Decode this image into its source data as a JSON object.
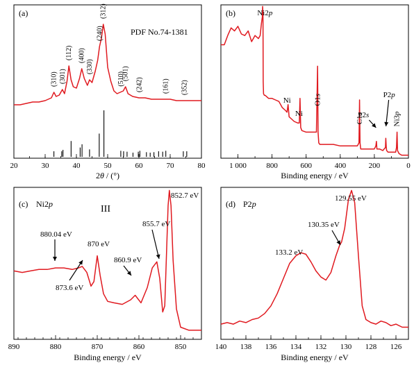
{
  "chart_data": [
    {
      "panel": "(a)",
      "type": "line",
      "annotation": "PDF No.74-1381",
      "xlabel": "2θ / (°)",
      "xlim": [
        20,
        80
      ],
      "x_ticks": [
        "20",
        "30",
        "40",
        "50",
        "60",
        "70",
        "80"
      ],
      "series": [
        {
          "x": [
            20,
            22,
            24,
            26,
            28,
            30,
            31,
            32,
            32.8,
            33.5,
            34.5,
            35.5,
            36.2,
            37,
            37.6,
            38.3,
            39,
            40,
            41,
            41.7,
            42.5,
            43.5,
            44.2,
            45,
            46,
            46.8,
            47.4,
            48,
            48.6,
            49.2,
            50,
            51,
            52,
            53,
            54,
            55,
            55.7,
            56.5,
            58,
            60,
            62,
            64,
            66,
            68,
            70,
            72,
            74,
            76,
            78,
            80
          ],
          "y": [
            0.28,
            0.28,
            0.29,
            0.3,
            0.3,
            0.31,
            0.32,
            0.33,
            0.37,
            0.34,
            0.35,
            0.39,
            0.36,
            0.45,
            0.56,
            0.46,
            0.41,
            0.4,
            0.47,
            0.54,
            0.47,
            0.42,
            0.46,
            0.44,
            0.52,
            0.6,
            0.7,
            0.76,
            0.86,
            0.79,
            0.55,
            0.45,
            0.38,
            0.36,
            0.37,
            0.38,
            0.41,
            0.36,
            0.34,
            0.33,
            0.33,
            0.32,
            0.32,
            0.32,
            0.32,
            0.31,
            0.31,
            0.31,
            0.31,
            0.31
          ]
        }
      ],
      "peak_labels": [
        {
          "label": "(310)",
          "x": 32.8
        },
        {
          "label": "(301)",
          "x": 35.5
        },
        {
          "label": "(112)",
          "x": 37.6
        },
        {
          "label": "(400)",
          "x": 41.7
        },
        {
          "label": "(330)",
          "x": 44.2
        },
        {
          "label": "(240)",
          "x": 47.4
        },
        {
          "label": "(312)",
          "x": 48.6
        },
        {
          "label": "(510)",
          "x": 54.2
        },
        {
          "label": "(501)",
          "x": 55.7
        },
        {
          "label": "(242)",
          "x": 60.1
        },
        {
          "label": "(161)",
          "x": 68.5
        },
        {
          "label": "(352)",
          "x": 74.5
        }
      ],
      "reference_lines": {
        "x": [
          32.8,
          35.3,
          35.7,
          38.3,
          41.2,
          41.8,
          44.2,
          47.3,
          48.8,
          54.2,
          55.1,
          56.2,
          58.1,
          59.8,
          60.3,
          62.4,
          63.6,
          64.8,
          66.3,
          67.6,
          68.6,
          74.2,
          75.3
        ],
        "y": [
          0.12,
          0.12,
          0.15,
          0.34,
          0.2,
          0.27,
          0.16,
          0.5,
          1.0,
          0.13,
          0.12,
          0.11,
          0.09,
          0.11,
          0.13,
          0.1,
          0.09,
          0.1,
          0.12,
          0.11,
          0.13,
          0.12,
          0.12
        ]
      }
    },
    {
      "panel": "(b)",
      "type": "line",
      "xlabel": "Binding energy / eV",
      "xlim": [
        1100,
        0
      ],
      "x_ticks": [
        "1 000",
        "800",
        "600",
        "400",
        "200",
        "0"
      ],
      "series": [
        {
          "x": [
            1100,
            1080,
            1060,
            1040,
            1020,
            1000,
            980,
            960,
            940,
            920,
            900,
            880,
            870,
            862,
            857,
            855,
            853,
            852,
            850,
            845,
            840,
            820,
            800,
            780,
            760,
            740,
            720,
            712,
            706,
            700,
            690,
            670,
            650,
            640,
            636,
            632,
            625,
            600,
            560,
            540,
            533,
            530,
            526,
            520,
            480,
            440,
            400,
            360,
            320,
            300,
            290,
            287,
            284,
            280,
            260,
            220,
            200,
            191,
            188,
            185,
            170,
            150,
            135,
            133,
            130,
            128,
            120,
            100,
            75,
            70,
            67,
            64,
            55,
            40,
            20,
            0
          ],
          "y": [
            0.74,
            0.74,
            0.8,
            0.85,
            0.83,
            0.86,
            0.81,
            0.8,
            0.83,
            0.76,
            0.8,
            0.78,
            0.8,
            0.88,
            0.92,
            0.99,
            0.94,
            0.5,
            0.42,
            0.41,
            0.41,
            0.39,
            0.39,
            0.38,
            0.37,
            0.33,
            0.31,
            0.3,
            0.35,
            0.27,
            0.26,
            0.24,
            0.23,
            0.23,
            0.39,
            0.2,
            0.18,
            0.17,
            0.17,
            0.17,
            0.6,
            0.17,
            0.1,
            0.09,
            0.09,
            0.09,
            0.08,
            0.08,
            0.08,
            0.08,
            0.1,
            0.38,
            0.1,
            0.06,
            0.06,
            0.06,
            0.06,
            0.08,
            0.11,
            0.06,
            0.06,
            0.05,
            0.07,
            0.13,
            0.07,
            0.05,
            0.04,
            0.04,
            0.04,
            0.07,
            0.17,
            0.05,
            0.03,
            0.02,
            0.02,
            0.02
          ]
        }
      ],
      "labels": [
        {
          "text": "Ni2p",
          "x": 850
        },
        {
          "text": "Ni",
          "x": 710
        },
        {
          "text": "Ni",
          "x": 640
        },
        {
          "text": "O1s",
          "x": 531
        },
        {
          "text": "C1s",
          "x": 285
        },
        {
          "text": "P2s",
          "x": 190
        },
        {
          "text": "P2p",
          "x": 132
        },
        {
          "text": "Ni3p",
          "x": 67
        }
      ]
    },
    {
      "panel": "(c)",
      "type": "line",
      "title": "Ni2p",
      "roman": "III",
      "xlabel": "Binding energy / eV",
      "xlim": [
        890,
        845
      ],
      "x_ticks": [
        "890",
        "880",
        "870",
        "860",
        "850"
      ],
      "series": [
        {
          "x": [
            890,
            888,
            886,
            884,
            882,
            880.04,
            878,
            876,
            874.5,
            873.6,
            872.5,
            871.5,
            870.8,
            870,
            869.3,
            868.5,
            867.5,
            866,
            864,
            862,
            860.9,
            859.5,
            858,
            856.8,
            855.7,
            855,
            854.3,
            853.8,
            853.4,
            853,
            852.7,
            852.3,
            851.8,
            851,
            850,
            848,
            846,
            845
          ],
          "y": [
            0.45,
            0.44,
            0.45,
            0.46,
            0.46,
            0.47,
            0.47,
            0.46,
            0.47,
            0.48,
            0.44,
            0.35,
            0.38,
            0.55,
            0.42,
            0.3,
            0.25,
            0.24,
            0.23,
            0.26,
            0.29,
            0.24,
            0.34,
            0.47,
            0.51,
            0.4,
            0.18,
            0.22,
            0.55,
            0.88,
            0.98,
            0.88,
            0.52,
            0.2,
            0.08,
            0.06,
            0.06,
            0.06
          ]
        }
      ],
      "annotations": [
        {
          "text": "880.04 eV",
          "x": 880.04
        },
        {
          "text": "873.6 eV",
          "x": 873.6
        },
        {
          "text": "870 eV",
          "x": 870
        },
        {
          "text": "860.9 eV",
          "x": 860.9
        },
        {
          "text": "855.7 eV",
          "x": 855.7
        },
        {
          "text": "852.7 eV",
          "x": 852.7
        }
      ]
    },
    {
      "panel": "(d)",
      "type": "line",
      "title": "P2p",
      "xlabel": "Binding energy / eV",
      "xlim": [
        140,
        125
      ],
      "x_ticks": [
        "140",
        "138",
        "136",
        "134",
        "132",
        "130",
        "128",
        "126"
      ],
      "series": [
        {
          "x": [
            140,
            139.5,
            139,
            138.5,
            138,
            137.5,
            137,
            136.5,
            136,
            135.5,
            135,
            134.5,
            134,
            133.6,
            133.2,
            132.8,
            132.4,
            132,
            131.6,
            131.2,
            130.8,
            130.5,
            130.35,
            130.1,
            129.8,
            129.55,
            129.3,
            129,
            128.7,
            128.4,
            128,
            127.6,
            127.2,
            126.8,
            126.4,
            126,
            125.5,
            125
          ],
          "y": [
            0.1,
            0.11,
            0.1,
            0.12,
            0.11,
            0.13,
            0.14,
            0.17,
            0.22,
            0.3,
            0.4,
            0.5,
            0.55,
            0.57,
            0.56,
            0.51,
            0.45,
            0.41,
            0.39,
            0.44,
            0.55,
            0.62,
            0.64,
            0.73,
            0.92,
            0.98,
            0.9,
            0.55,
            0.22,
            0.13,
            0.11,
            0.1,
            0.12,
            0.11,
            0.09,
            0.1,
            0.08,
            0.08
          ]
        }
      ],
      "annotations": [
        {
          "text": "133.2 eV",
          "x": 133.2
        },
        {
          "text": "130.35 eV",
          "x": 130.35
        },
        {
          "text": "129.55 eV",
          "x": 129.55
        }
      ]
    }
  ]
}
